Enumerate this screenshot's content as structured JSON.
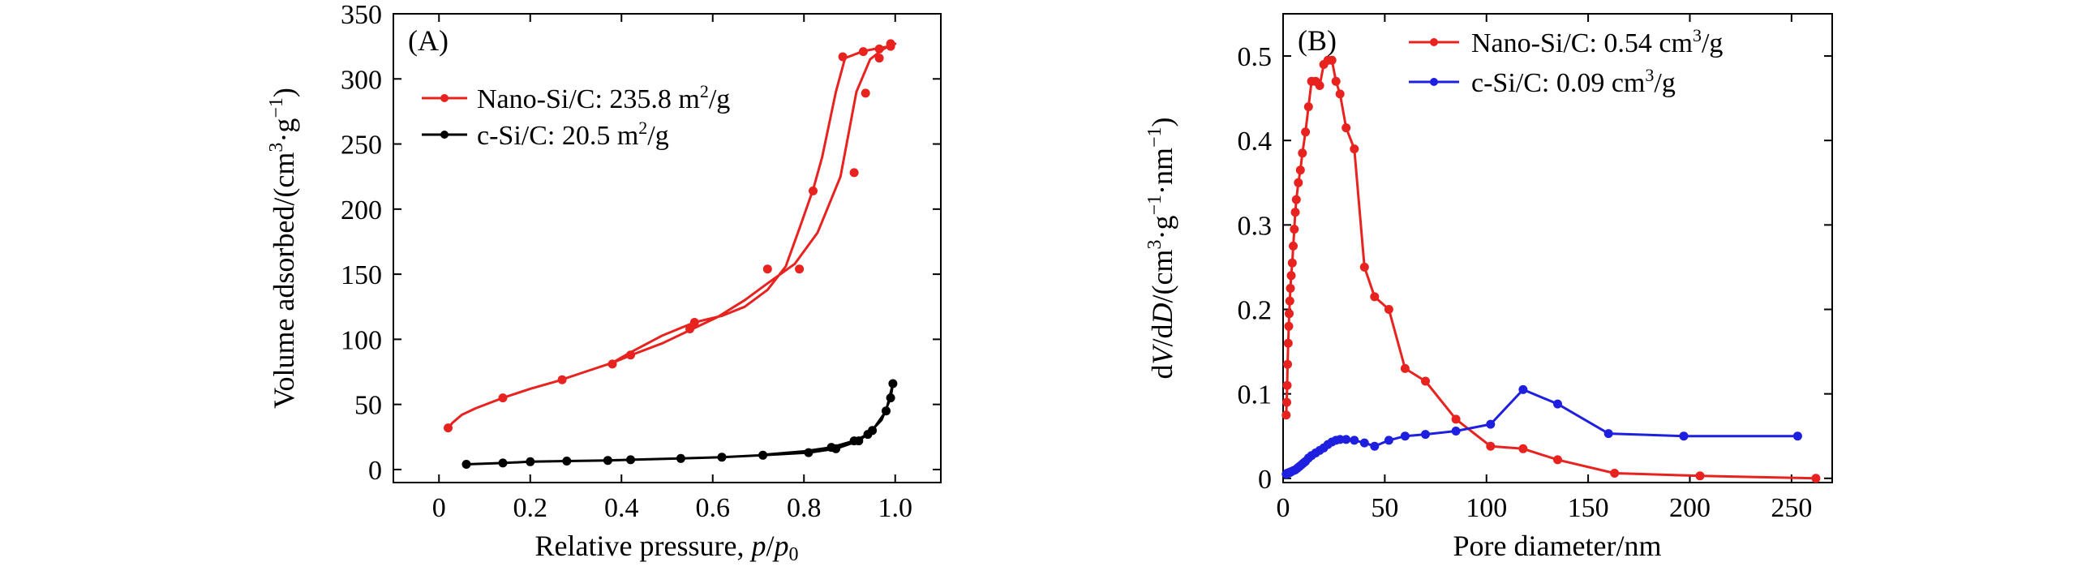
{
  "chart_data": [
    {
      "panel": "A",
      "type": "line",
      "panel_label": "(A)",
      "xlabel": "Relative pressure, p/p₀",
      "ylabel": "Volume adsorbed/(cm³·g⁻¹)",
      "xlim": [
        -0.1,
        1.1
      ],
      "ylim": [
        -10,
        350
      ],
      "xticks": [
        0,
        0.2,
        0.4,
        0.6,
        0.8,
        1.0
      ],
      "xtick_labels": [
        "0",
        "0.2",
        "0.4",
        "0.6",
        "0.8",
        "1.0"
      ],
      "yticks": [
        0,
        50,
        100,
        150,
        200,
        250,
        300,
        350
      ],
      "ytick_labels": [
        "0",
        "50",
        "100",
        "150",
        "200",
        "250",
        "300",
        "350"
      ],
      "legend_position": "upper-left",
      "series": [
        {
          "name": "Nano-Si/C: 235.8 m²/g",
          "color": "#e8231f",
          "x": [
            0.02,
            0.03,
            0.05,
            0.08,
            0.14,
            0.2,
            0.26,
            0.32,
            0.38,
            0.43,
            0.49,
            0.55,
            0.61,
            0.67,
            0.72,
            0.78,
            0.83,
            0.88,
            0.915,
            0.945,
            0.97,
            0.99,
            1.0,
            0.99,
            0.97,
            0.94,
            0.92,
            0.89,
            0.87,
            0.84,
            0.82,
            0.79,
            0.76,
            0.72,
            0.67,
            0.62,
            0.56,
            0.49,
            0.42,
            0.37
          ],
          "y": [
            32,
            36,
            42,
            47,
            55,
            62,
            68,
            75,
            82,
            89,
            97,
            107,
            117,
            130,
            143,
            158,
            182,
            225,
            290,
            315,
            322,
            326,
            327,
            325,
            324,
            322,
            320,
            316,
            290,
            240,
            215,
            185,
            156,
            138,
            125,
            118,
            113,
            103,
            90,
            80
          ],
          "marker_x": [
            0.02,
            0.14,
            0.27,
            0.38,
            0.42,
            0.55,
            0.79,
            0.91,
            0.935,
            0.965,
            0.99,
            0.99,
            0.965,
            0.93,
            0.885,
            0.82,
            0.72,
            0.56
          ],
          "marker_y": [
            32,
            55,
            69,
            81,
            88,
            108,
            154,
            228,
            289,
            316,
            327,
            325,
            323,
            321,
            317,
            214,
            154,
            113
          ]
        },
        {
          "name": "c-Si/C: 20.5 m²/g",
          "color": "#000000",
          "x": [
            0.06,
            0.14,
            0.2,
            0.28,
            0.37,
            0.42,
            0.53,
            0.62,
            0.71,
            0.81,
            0.87,
            0.92,
            0.95,
            0.98,
            0.995,
            0.99,
            0.97,
            0.94,
            0.91,
            0.86,
            0.8,
            0.7
          ],
          "y": [
            4,
            5,
            6,
            6.5,
            7,
            7.5,
            8.5,
            9.5,
            11,
            13,
            16,
            22,
            30,
            45,
            66,
            55,
            38,
            27,
            22,
            17,
            14,
            11
          ],
          "marker_x": [
            0.06,
            0.14,
            0.2,
            0.28,
            0.37,
            0.42,
            0.53,
            0.62,
            0.71,
            0.81,
            0.87,
            0.92,
            0.95,
            0.98,
            0.995,
            0.99,
            0.94,
            0.91,
            0.86
          ],
          "marker_y": [
            4,
            5,
            6,
            6.5,
            7,
            7.5,
            8.5,
            9.5,
            11,
            13,
            16,
            22,
            30,
            45,
            66,
            55,
            27,
            22,
            17
          ]
        }
      ]
    },
    {
      "panel": "B",
      "type": "line",
      "panel_label": "(B)",
      "xlabel": "Pore diameter/nm",
      "ylabel": "dV/dD/(cm³·g⁻¹·nm⁻¹)",
      "xlim": [
        0,
        270
      ],
      "ylim": [
        -0.005,
        0.55
      ],
      "xticks": [
        0,
        50,
        100,
        150,
        200,
        250
      ],
      "xtick_labels": [
        "0",
        "50",
        "100",
        "150",
        "200",
        "250"
      ],
      "yticks": [
        0,
        0.1,
        0.2,
        0.3,
        0.4,
        0.5
      ],
      "ytick_labels": [
        "0",
        "0.1",
        "0.2",
        "0.3",
        "0.4",
        "0.5"
      ],
      "legend_position": "upper-right",
      "series": [
        {
          "name": "Nano-Si/C: 0.54 cm³/g",
          "color": "#e8231f",
          "x": [
            1.5,
            1.8,
            2.0,
            2.2,
            2.5,
            2.8,
            3.0,
            3.3,
            3.6,
            4.0,
            4.5,
            5.0,
            5.5,
            6.0,
            6.5,
            7.5,
            8.5,
            9.5,
            11,
            12.5,
            14,
            16,
            18,
            20,
            22,
            24,
            26,
            28,
            31,
            35,
            40,
            45,
            52,
            60,
            70,
            85,
            102,
            118,
            135,
            163,
            205,
            262
          ],
          "y": [
            0.075,
            0.09,
            0.11,
            0.135,
            0.16,
            0.18,
            0.195,
            0.21,
            0.225,
            0.24,
            0.255,
            0.275,
            0.295,
            0.315,
            0.33,
            0.35,
            0.365,
            0.385,
            0.41,
            0.44,
            0.47,
            0.47,
            0.465,
            0.49,
            0.495,
            0.495,
            0.47,
            0.455,
            0.415,
            0.39,
            0.25,
            0.215,
            0.2,
            0.13,
            0.115,
            0.07,
            0.038,
            0.035,
            0.022,
            0.006,
            0.003,
            0.0
          ],
          "marker_x": [
            1.5,
            1.8,
            2.0,
            2.2,
            2.5,
            2.8,
            3.0,
            3.3,
            3.6,
            4.0,
            4.5,
            5.0,
            5.5,
            6.0,
            6.5,
            7.5,
            8.5,
            9.5,
            11,
            12.5,
            14,
            16,
            18,
            20,
            22,
            24,
            26,
            28,
            31,
            35,
            40,
            45,
            52,
            60,
            70,
            85,
            102,
            118,
            135,
            163,
            205,
            262
          ],
          "marker_y": [
            0.075,
            0.09,
            0.11,
            0.135,
            0.16,
            0.18,
            0.195,
            0.21,
            0.225,
            0.24,
            0.255,
            0.275,
            0.295,
            0.315,
            0.33,
            0.35,
            0.365,
            0.385,
            0.41,
            0.44,
            0.47,
            0.47,
            0.465,
            0.49,
            0.495,
            0.495,
            0.47,
            0.455,
            0.415,
            0.39,
            0.25,
            0.215,
            0.2,
            0.13,
            0.115,
            0.07,
            0.038,
            0.035,
            0.022,
            0.006,
            0.003,
            0.0
          ]
        },
        {
          "name": "c-Si/C: 0.09 cm³/g",
          "color": "#1f1fe0",
          "x": [
            1.5,
            2.0,
            2.5,
            3.0,
            3.5,
            4.0,
            5.0,
            6.0,
            7.0,
            8.0,
            9.0,
            10,
            11,
            12.5,
            14,
            16,
            18,
            20,
            22,
            24,
            26,
            28,
            31,
            35,
            40,
            45,
            52,
            60,
            70,
            85,
            102,
            118,
            135,
            160,
            197,
            253
          ],
          "y": [
            0.005,
            0.006,
            0.006,
            0.007,
            0.007,
            0.008,
            0.009,
            0.01,
            0.012,
            0.014,
            0.016,
            0.018,
            0.02,
            0.024,
            0.027,
            0.03,
            0.033,
            0.036,
            0.04,
            0.043,
            0.045,
            0.046,
            0.046,
            0.045,
            0.042,
            0.038,
            0.045,
            0.05,
            0.052,
            0.056,
            0.064,
            0.105,
            0.088,
            0.053,
            0.05,
            0.05
          ],
          "marker_x": [
            1.5,
            2.0,
            2.5,
            3.0,
            3.5,
            4.0,
            5.0,
            6.0,
            7.0,
            8.0,
            9.0,
            10,
            11,
            12.5,
            14,
            16,
            18,
            20,
            22,
            24,
            26,
            28,
            31,
            35,
            40,
            45,
            52,
            60,
            70,
            85,
            102,
            118,
            135,
            160,
            197,
            253
          ],
          "marker_y": [
            0.005,
            0.006,
            0.006,
            0.007,
            0.007,
            0.008,
            0.009,
            0.01,
            0.012,
            0.014,
            0.016,
            0.018,
            0.02,
            0.024,
            0.027,
            0.03,
            0.033,
            0.036,
            0.04,
            0.043,
            0.045,
            0.046,
            0.046,
            0.045,
            0.042,
            0.038,
            0.045,
            0.05,
            0.052,
            0.056,
            0.064,
            0.105,
            0.088,
            0.053,
            0.05,
            0.05
          ]
        }
      ]
    }
  ]
}
